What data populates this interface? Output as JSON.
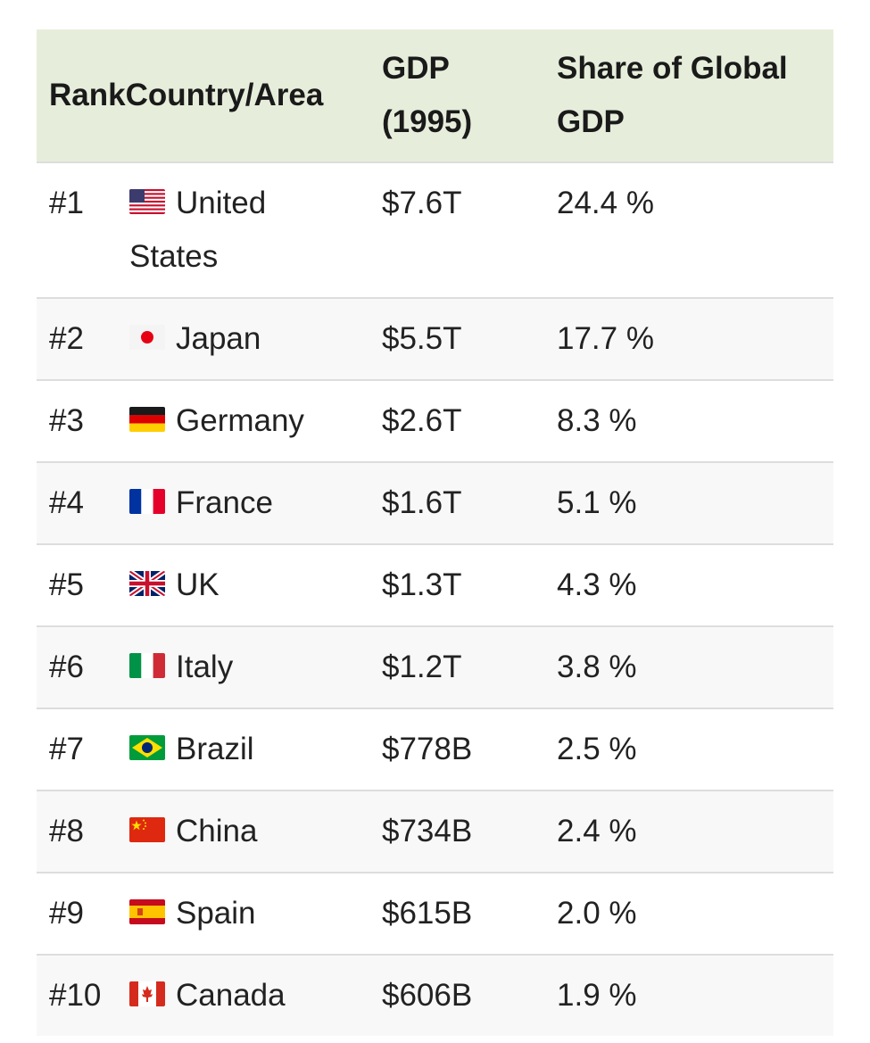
{
  "table": {
    "headers": {
      "rank": "Rank",
      "country": "Country/Area",
      "gdp": "GDP (1995)",
      "share": "Share of Global GDP"
    },
    "rows": [
      {
        "rank": "#1",
        "country": "United States",
        "gdp": "$7.6T",
        "share": "24.4 %",
        "flag": "us-flag-icon"
      },
      {
        "rank": "#2",
        "country": "Japan",
        "gdp": "$5.5T",
        "share": "17.7 %",
        "flag": "japan-flag-icon"
      },
      {
        "rank": "#3",
        "country": "Germany",
        "gdp": "$2.6T",
        "share": "8.3 %",
        "flag": "germany-flag-icon"
      },
      {
        "rank": "#4",
        "country": "France",
        "gdp": "$1.6T",
        "share": "5.1 %",
        "flag": "france-flag-icon"
      },
      {
        "rank": "#5",
        "country": "UK",
        "gdp": "$1.3T",
        "share": "4.3 %",
        "flag": "uk-flag-icon"
      },
      {
        "rank": "#6",
        "country": "Italy",
        "gdp": "$1.2T",
        "share": "3.8 %",
        "flag": "italy-flag-icon"
      },
      {
        "rank": "#7",
        "country": "Brazil",
        "gdp": "$778B",
        "share": "2.5 %",
        "flag": "brazil-flag-icon"
      },
      {
        "rank": "#8",
        "country": "China",
        "gdp": "$734B",
        "share": "2.4 %",
        "flag": "china-flag-icon"
      },
      {
        "rank": "#9",
        "country": "Spain",
        "gdp": "$615B",
        "share": "2.0 %",
        "flag": "spain-flag-icon"
      },
      {
        "rank": "#10",
        "country": "Canada",
        "gdp": "$606B",
        "share": "1.9 %",
        "flag": "canada-flag-icon"
      }
    ]
  },
  "colors": {
    "header_bg": "#e6eedb",
    "row_alt_bg": "#f8f8f8",
    "row_border": "#dddddd"
  }
}
